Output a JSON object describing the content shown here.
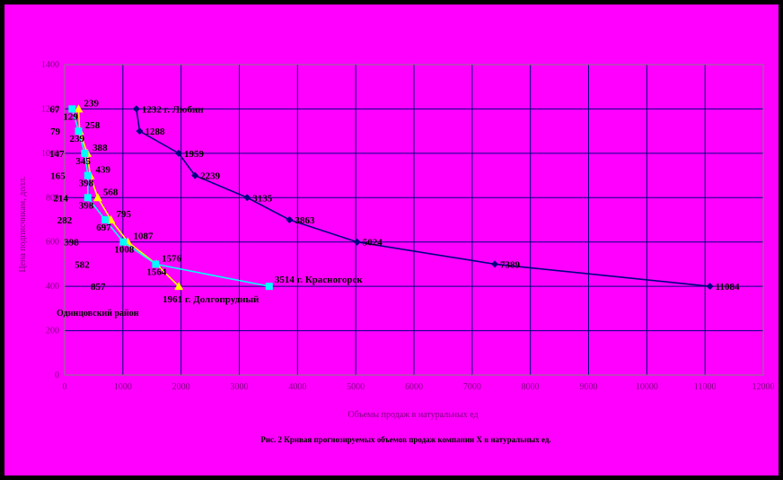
{
  "chart_data": {
    "type": "line",
    "title": "",
    "xlabel": "Объемы продаж в натуральных ед",
    "ylabel": "Цена подписчикам, долл.",
    "caption": "Рис. 2  Кривая прогнозируемых объемов продаж компании Х в натуральных ед.",
    "xlim": [
      0,
      12000
    ],
    "ylim": [
      0,
      1400
    ],
    "xticks": [
      0,
      1000,
      2000,
      3000,
      4000,
      5000,
      6000,
      7000,
      8000,
      9000,
      10000,
      11000,
      12000
    ],
    "yticks": [
      0,
      200,
      400,
      600,
      800,
      1000,
      1200,
      1400
    ],
    "grid": true,
    "colors": {
      "background": "#ff00ff",
      "outer": "#000000",
      "grid": "#000080",
      "lyubertsy": "#000080",
      "dolgoprudny": "#ffff00",
      "krasnogorsk": "#00ffff"
    },
    "series": [
      {
        "key": "lyubertsy",
        "x": [
          1232,
          1288,
          1959,
          2239,
          3135,
          3863,
          5024,
          7389,
          11084
        ],
        "y": [
          1200,
          1100,
          1000,
          900,
          800,
          700,
          600,
          500,
          400
        ],
        "labels": [
          "1232 г. Любин",
          "1288",
          "1959",
          "2239",
          "3135",
          "3863",
          "5024",
          "7389",
          "11084"
        ]
      },
      {
        "key": "dolgoprudny",
        "x": [
          239,
          258,
          388,
          439,
          568,
          795,
          1087,
          1576,
          1961
        ],
        "y": [
          1200,
          1100,
          1000,
          900,
          800,
          700,
          600,
          500,
          400
        ],
        "labels": [
          "239",
          "258",
          "388",
          "439",
          "568",
          "795",
          "1087",
          "1576",
          "1961 г. Долгопрудный"
        ]
      },
      {
        "key": "krasnogorsk",
        "x": [
          129,
          239,
          345,
          398,
          398,
          697,
          1008,
          1564,
          3514
        ],
        "y": [
          1200,
          1100,
          1000,
          900,
          800,
          700,
          600,
          500,
          400
        ],
        "labels": [
          "129",
          "239",
          "345",
          "398",
          "398",
          "697",
          "1008",
          "1564",
          "3514  г. Красногорск"
        ]
      }
    ],
    "odintsovo_labels": [
      {
        "text": "67",
        "x": 67,
        "y": 1200
      },
      {
        "text": "79",
        "x": 79,
        "y": 1100
      },
      {
        "text": "147",
        "x": 147,
        "y": 1000
      },
      {
        "text": "165",
        "x": 165,
        "y": 900
      },
      {
        "text": "214",
        "x": 214,
        "y": 800
      },
      {
        "text": "282",
        "x": 282,
        "y": 700
      },
      {
        "text": "398",
        "x": 398,
        "y": 600
      },
      {
        "text": "582",
        "x": 582,
        "y": 500
      },
      {
        "text": "857",
        "x": 857,
        "y": 400
      }
    ],
    "annotation": "Одинцовский район"
  }
}
